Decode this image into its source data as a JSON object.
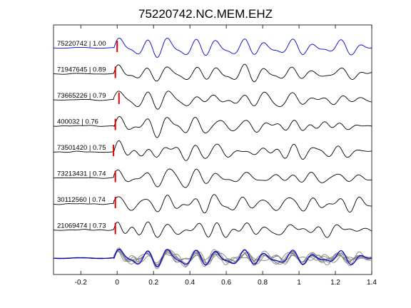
{
  "figure": {
    "title": "75220742.NC.MEM.EHZ"
  },
  "chart_data": {
    "type": "line",
    "title": "75220742.NC.MEM.EHZ",
    "xlabel": "",
    "ylabel": "",
    "xlim": [
      -0.35,
      1.4
    ],
    "xticks": [
      -0.2,
      0,
      0.2,
      0.4,
      0.6,
      0.8,
      1,
      1.2,
      1.4
    ],
    "xtick_labels": [
      "-0.2",
      "0",
      "0.2",
      "0.4",
      "0.6",
      "0.8",
      "1",
      "1.2",
      "1.4"
    ],
    "grid": false,
    "pick_time": 0,
    "pick_color": "#e00000",
    "reference_color": "#0000cc",
    "trace_color": "#000000",
    "stack_other_color": "#808080",
    "series": [
      {
        "name": "75220742",
        "correlation": 1.0,
        "label": "75220742 | 1.00",
        "pick_offset": 0.0,
        "seed": 11
      },
      {
        "name": "71947645",
        "correlation": 0.89,
        "label": "71947645 | 0.89",
        "pick_offset": -0.01,
        "seed": 23
      },
      {
        "name": "73665226",
        "correlation": 0.79,
        "label": "73665226 | 0.79",
        "pick_offset": 0.01,
        "seed": 37
      },
      {
        "name": "400032",
        "correlation": 0.76,
        "label": "400032 | 0.76",
        "pick_offset": -0.01,
        "seed": 41
      },
      {
        "name": "73501420",
        "correlation": 0.75,
        "label": "73501420 | 0.75",
        "pick_offset": -0.02,
        "seed": 53
      },
      {
        "name": "73213431",
        "correlation": 0.74,
        "label": "73213431 | 0.74",
        "pick_offset": -0.01,
        "seed": 67
      },
      {
        "name": "30112560",
        "correlation": 0.74,
        "label": "30112560 | 0.74",
        "pick_offset": -0.01,
        "seed": 71
      },
      {
        "name": "21069474",
        "correlation": 0.73,
        "label": "21069474 | 0.73",
        "pick_offset": -0.01,
        "seed": 89
      }
    ]
  }
}
